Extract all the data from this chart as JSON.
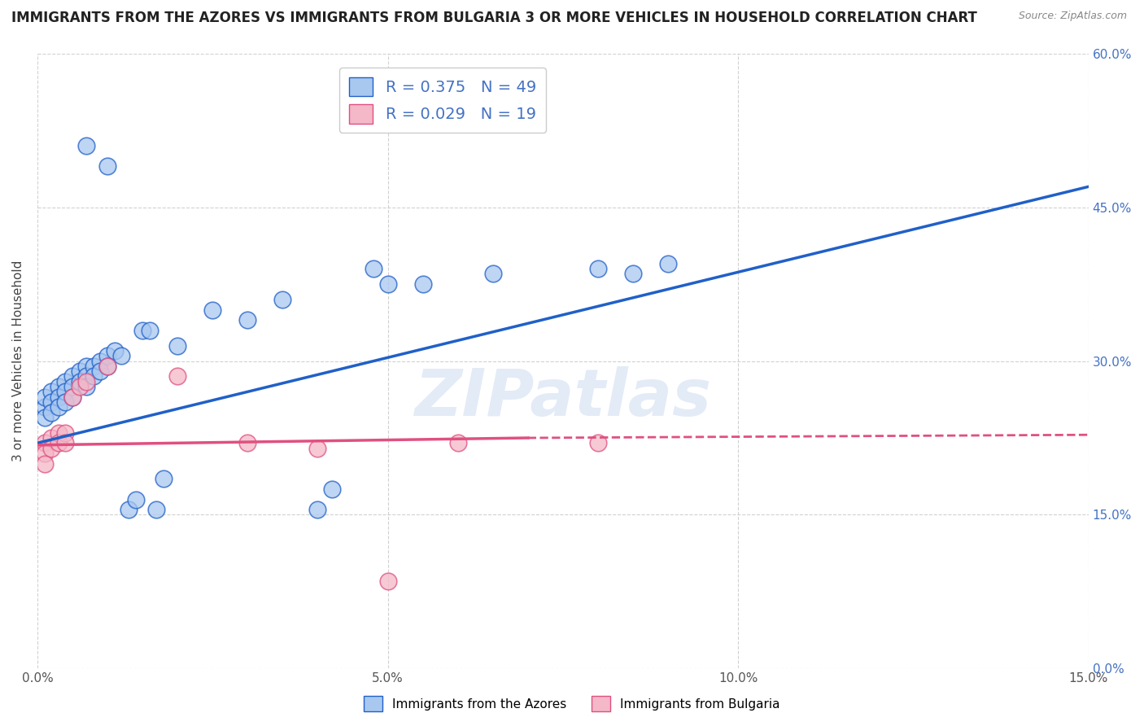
{
  "title": "IMMIGRANTS FROM THE AZORES VS IMMIGRANTS FROM BULGARIA 3 OR MORE VEHICLES IN HOUSEHOLD CORRELATION CHART",
  "source": "Source: ZipAtlas.com",
  "ylabel": "3 or more Vehicles in Household",
  "x_min": 0.0,
  "x_max": 0.15,
  "y_min": 0.0,
  "y_max": 0.6,
  "watermark": "ZIPatlas",
  "legend_label_azores": "Immigrants from the Azores",
  "legend_label_bulgaria": "Immigrants from Bulgaria",
  "R_azores": 0.375,
  "N_azores": 49,
  "R_bulgaria": 0.029,
  "N_bulgaria": 19,
  "color_azores": "#a8c8f0",
  "color_bulgaria": "#f4b8c8",
  "line_color_azores": "#2060c8",
  "line_color_bulgaria": "#e05080",
  "background_color": "#ffffff",
  "grid_color": "#cccccc",
  "azores_points": [
    [
      0.001,
      0.255
    ],
    [
      0.001,
      0.265
    ],
    [
      0.001,
      0.245
    ],
    [
      0.002,
      0.27
    ],
    [
      0.002,
      0.26
    ],
    [
      0.002,
      0.25
    ],
    [
      0.003,
      0.275
    ],
    [
      0.003,
      0.265
    ],
    [
      0.003,
      0.255
    ],
    [
      0.004,
      0.28
    ],
    [
      0.004,
      0.27
    ],
    [
      0.004,
      0.26
    ],
    [
      0.005,
      0.285
    ],
    [
      0.005,
      0.275
    ],
    [
      0.005,
      0.265
    ],
    [
      0.006,
      0.29
    ],
    [
      0.006,
      0.28
    ],
    [
      0.007,
      0.295
    ],
    [
      0.007,
      0.285
    ],
    [
      0.007,
      0.275
    ],
    [
      0.008,
      0.295
    ],
    [
      0.008,
      0.285
    ],
    [
      0.009,
      0.3
    ],
    [
      0.009,
      0.29
    ],
    [
      0.01,
      0.305
    ],
    [
      0.01,
      0.295
    ],
    [
      0.011,
      0.31
    ],
    [
      0.012,
      0.305
    ],
    [
      0.013,
      0.155
    ],
    [
      0.014,
      0.165
    ],
    [
      0.015,
      0.33
    ],
    [
      0.016,
      0.33
    ],
    [
      0.017,
      0.155
    ],
    [
      0.018,
      0.185
    ],
    [
      0.02,
      0.315
    ],
    [
      0.025,
      0.35
    ],
    [
      0.03,
      0.34
    ],
    [
      0.035,
      0.36
    ],
    [
      0.04,
      0.155
    ],
    [
      0.042,
      0.175
    ],
    [
      0.05,
      0.375
    ],
    [
      0.055,
      0.375
    ],
    [
      0.065,
      0.385
    ],
    [
      0.08,
      0.39
    ],
    [
      0.085,
      0.385
    ],
    [
      0.09,
      0.395
    ],
    [
      0.01,
      0.49
    ],
    [
      0.007,
      0.51
    ],
    [
      0.048,
      0.39
    ]
  ],
  "bulgaria_points": [
    [
      0.001,
      0.22
    ],
    [
      0.001,
      0.21
    ],
    [
      0.001,
      0.2
    ],
    [
      0.002,
      0.225
    ],
    [
      0.002,
      0.215
    ],
    [
      0.003,
      0.23
    ],
    [
      0.003,
      0.22
    ],
    [
      0.004,
      0.23
    ],
    [
      0.004,
      0.22
    ],
    [
      0.005,
      0.265
    ],
    [
      0.006,
      0.275
    ],
    [
      0.007,
      0.28
    ],
    [
      0.01,
      0.295
    ],
    [
      0.02,
      0.285
    ],
    [
      0.03,
      0.22
    ],
    [
      0.04,
      0.215
    ],
    [
      0.05,
      0.085
    ],
    [
      0.06,
      0.22
    ],
    [
      0.08,
      0.22
    ]
  ],
  "x_ticks": [
    0.0,
    0.05,
    0.1,
    0.15
  ],
  "x_tick_labels": [
    "0.0%",
    "5.0%",
    "10.0%",
    "15.0%"
  ],
  "y_ticks": [
    0.0,
    0.15,
    0.3,
    0.45,
    0.6
  ],
  "right_tick_labels": [
    "0.0%",
    "15.0%",
    "30.0%",
    "45.0%",
    "60.0%"
  ],
  "title_fontsize": 12,
  "axis_label_fontsize": 11,
  "tick_fontsize": 11,
  "legend_fontsize": 14
}
